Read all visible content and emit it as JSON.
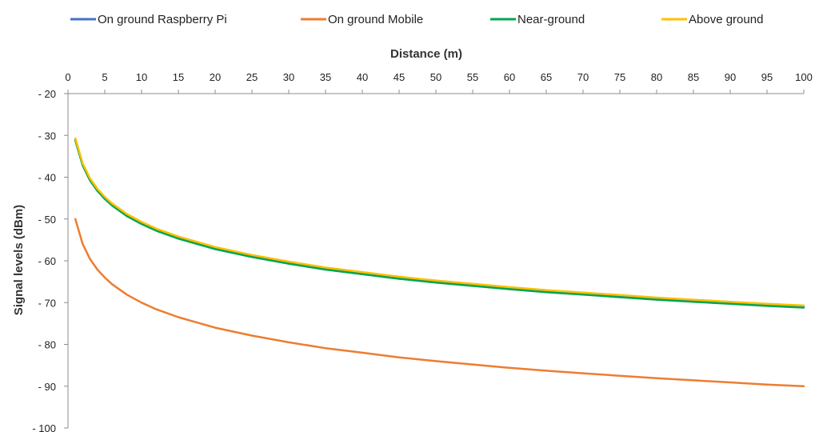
{
  "chart_data": {
    "type": "line",
    "xlabel": "Distance (m)",
    "ylabel": "Signal levels (dBm)",
    "xlim": [
      0,
      100
    ],
    "ylim": [
      -100,
      -20
    ],
    "x_axis_position": "top",
    "y_axis_inverted": true,
    "legend_position": "top",
    "grid": false,
    "x_ticks": [
      0,
      5,
      10,
      15,
      20,
      25,
      30,
      35,
      40,
      45,
      50,
      55,
      60,
      65,
      70,
      75,
      80,
      85,
      90,
      95,
      100
    ],
    "y_ticks": [
      -20,
      -30,
      -40,
      -50,
      -60,
      -70,
      -80,
      -90,
      -100
    ],
    "y_tick_labels": [
      "- 20",
      "- 30",
      "- 40",
      "- 50",
      "- 60",
      "- 70",
      "- 80",
      "- 90",
      "- 100"
    ],
    "x": [
      1,
      2,
      3,
      4,
      5,
      6,
      8,
      10,
      12,
      15,
      20,
      25,
      30,
      35,
      40,
      45,
      50,
      55,
      60,
      65,
      70,
      75,
      80,
      85,
      90,
      95,
      100
    ],
    "series": [
      {
        "name": "On ground Raspberry Pi",
        "color": "#4472C4",
        "values": [
          -31.0,
          -37.0,
          -40.6,
          -43.1,
          -45.0,
          -46.6,
          -49.1,
          -51.0,
          -52.6,
          -54.5,
          -57.0,
          -58.9,
          -60.5,
          -61.9,
          -63.0,
          -64.1,
          -65.0,
          -65.8,
          -66.6,
          -67.3,
          -67.9,
          -68.5,
          -69.1,
          -69.6,
          -70.1,
          -70.6,
          -71.0
        ]
      },
      {
        "name": "On ground Mobile",
        "color": "#ED7D31",
        "values": [
          -50.0,
          -56.0,
          -59.6,
          -62.1,
          -64.0,
          -65.6,
          -68.1,
          -70.0,
          -71.6,
          -73.5,
          -76.0,
          -77.9,
          -79.5,
          -80.9,
          -82.0,
          -83.1,
          -84.0,
          -84.8,
          -85.6,
          -86.3,
          -86.9,
          -87.5,
          -88.1,
          -88.6,
          -89.1,
          -89.6,
          -90.0
        ]
      },
      {
        "name": "Near-ground",
        "color": "#00A651",
        "values": [
          -31.2,
          -37.2,
          -40.8,
          -43.3,
          -45.2,
          -46.8,
          -49.3,
          -51.2,
          -52.8,
          -54.7,
          -57.2,
          -59.1,
          -60.7,
          -62.1,
          -63.2,
          -64.3,
          -65.2,
          -66.0,
          -66.8,
          -67.5,
          -68.1,
          -68.7,
          -69.3,
          -69.8,
          -70.3,
          -70.8,
          -71.2
        ]
      },
      {
        "name": "Above ground",
        "color": "#FFC000",
        "values": [
          -30.7,
          -36.7,
          -40.3,
          -42.8,
          -44.7,
          -46.3,
          -48.8,
          -50.7,
          -52.3,
          -54.2,
          -56.7,
          -58.6,
          -60.2,
          -61.6,
          -62.7,
          -63.8,
          -64.7,
          -65.5,
          -66.3,
          -67.0,
          -67.6,
          -68.2,
          -68.8,
          -69.3,
          -69.8,
          -70.3,
          -70.7
        ]
      }
    ]
  }
}
